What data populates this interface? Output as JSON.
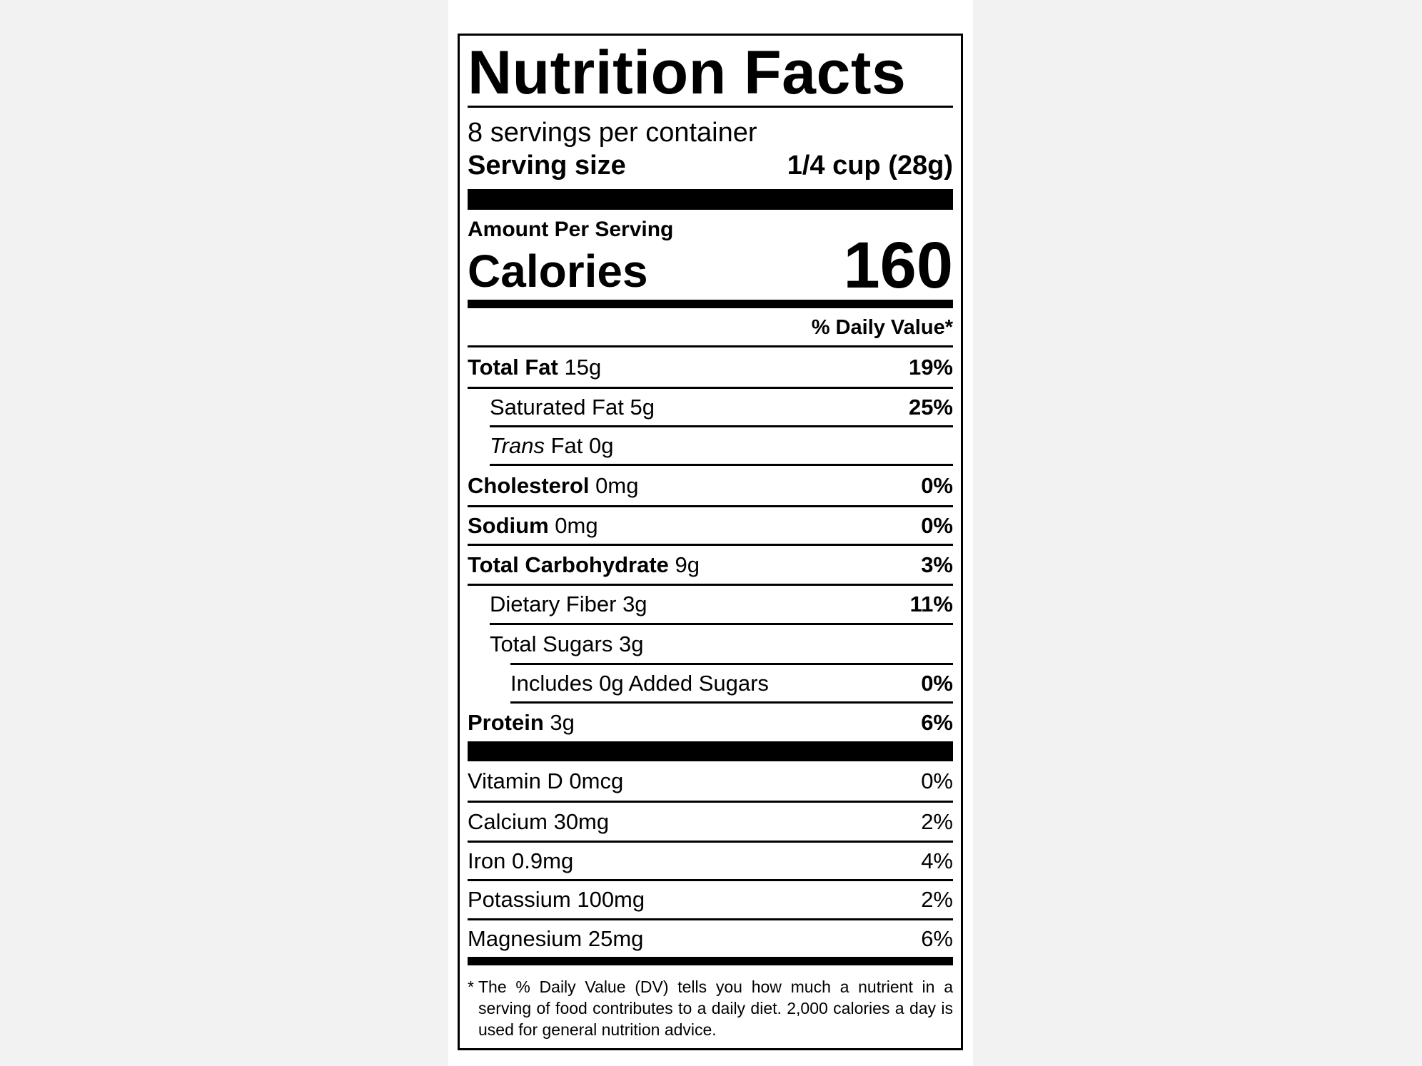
{
  "label": {
    "title": "Nutrition Facts",
    "servings_per_container": "8 servings per container",
    "serving_size_label": "Serving size",
    "serving_size_value": "1/4 cup (28g)",
    "amount_per_serving": "Amount Per Serving",
    "calories_label": "Calories",
    "calories_value": "160",
    "daily_value_header": "% Daily Value*",
    "nutrients": [
      {
        "name": "Total Fat",
        "amount": "15g",
        "dv": "19%"
      },
      {
        "name": "Saturated Fat",
        "amount": "5g",
        "dv": "25%"
      },
      {
        "name": "Trans",
        "name_suffix": "Fat",
        "amount": "0g",
        "dv": ""
      },
      {
        "name": "Cholesterol",
        "amount": "0mg",
        "dv": "0%"
      },
      {
        "name": "Sodium",
        "amount": "0mg",
        "dv": "0%"
      },
      {
        "name": "Total Carbohydrate",
        "amount": "9g",
        "dv": "3%"
      },
      {
        "name": "Dietary Fiber",
        "amount": "3g",
        "dv": "11%"
      },
      {
        "name": "Total Sugars",
        "amount": "3g",
        "dv": ""
      },
      {
        "name": "Includes 0g Added Sugars",
        "amount": "",
        "dv": "0%"
      },
      {
        "name": "Protein",
        "amount": "3g",
        "dv": "6%"
      }
    ],
    "vitamins": [
      {
        "text": "Vitamin D 0mcg",
        "dv": "0%"
      },
      {
        "text": "Calcium 30mg",
        "dv": "2%"
      },
      {
        "text": "Iron 0.9mg",
        "dv": "4%"
      },
      {
        "text": "Potassium 100mg",
        "dv": "2%"
      },
      {
        "text": "Magnesium 25mg",
        "dv": "6%"
      }
    ],
    "footnote_marker": "*",
    "footnote": "The % Daily Value (DV) tells you how much a nutrient in a serving of food contributes to a daily diet. 2,000 calories a day is used for general nutrition advice."
  }
}
